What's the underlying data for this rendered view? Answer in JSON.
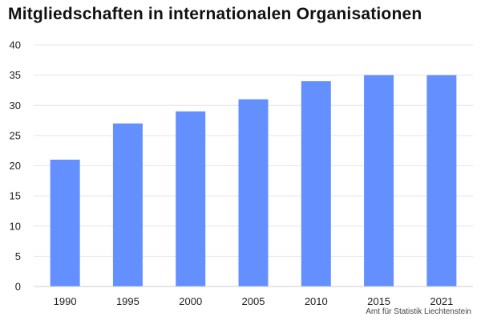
{
  "chart_data": {
    "type": "bar",
    "title": "Mitgliedschaften in internationalen Organisationen",
    "categories": [
      "1990",
      "1995",
      "2000",
      "2005",
      "2010",
      "2015",
      "2021"
    ],
    "values": [
      21,
      27,
      29,
      31,
      34,
      35,
      35
    ],
    "xlabel": "",
    "ylabel": "",
    "ylim": [
      0,
      40
    ],
    "yticks": [
      0,
      5,
      10,
      15,
      20,
      25,
      30,
      35,
      40
    ],
    "grid": true,
    "bar_color": "#648fff",
    "source": "Amt für Statistik Liechtenstein"
  }
}
